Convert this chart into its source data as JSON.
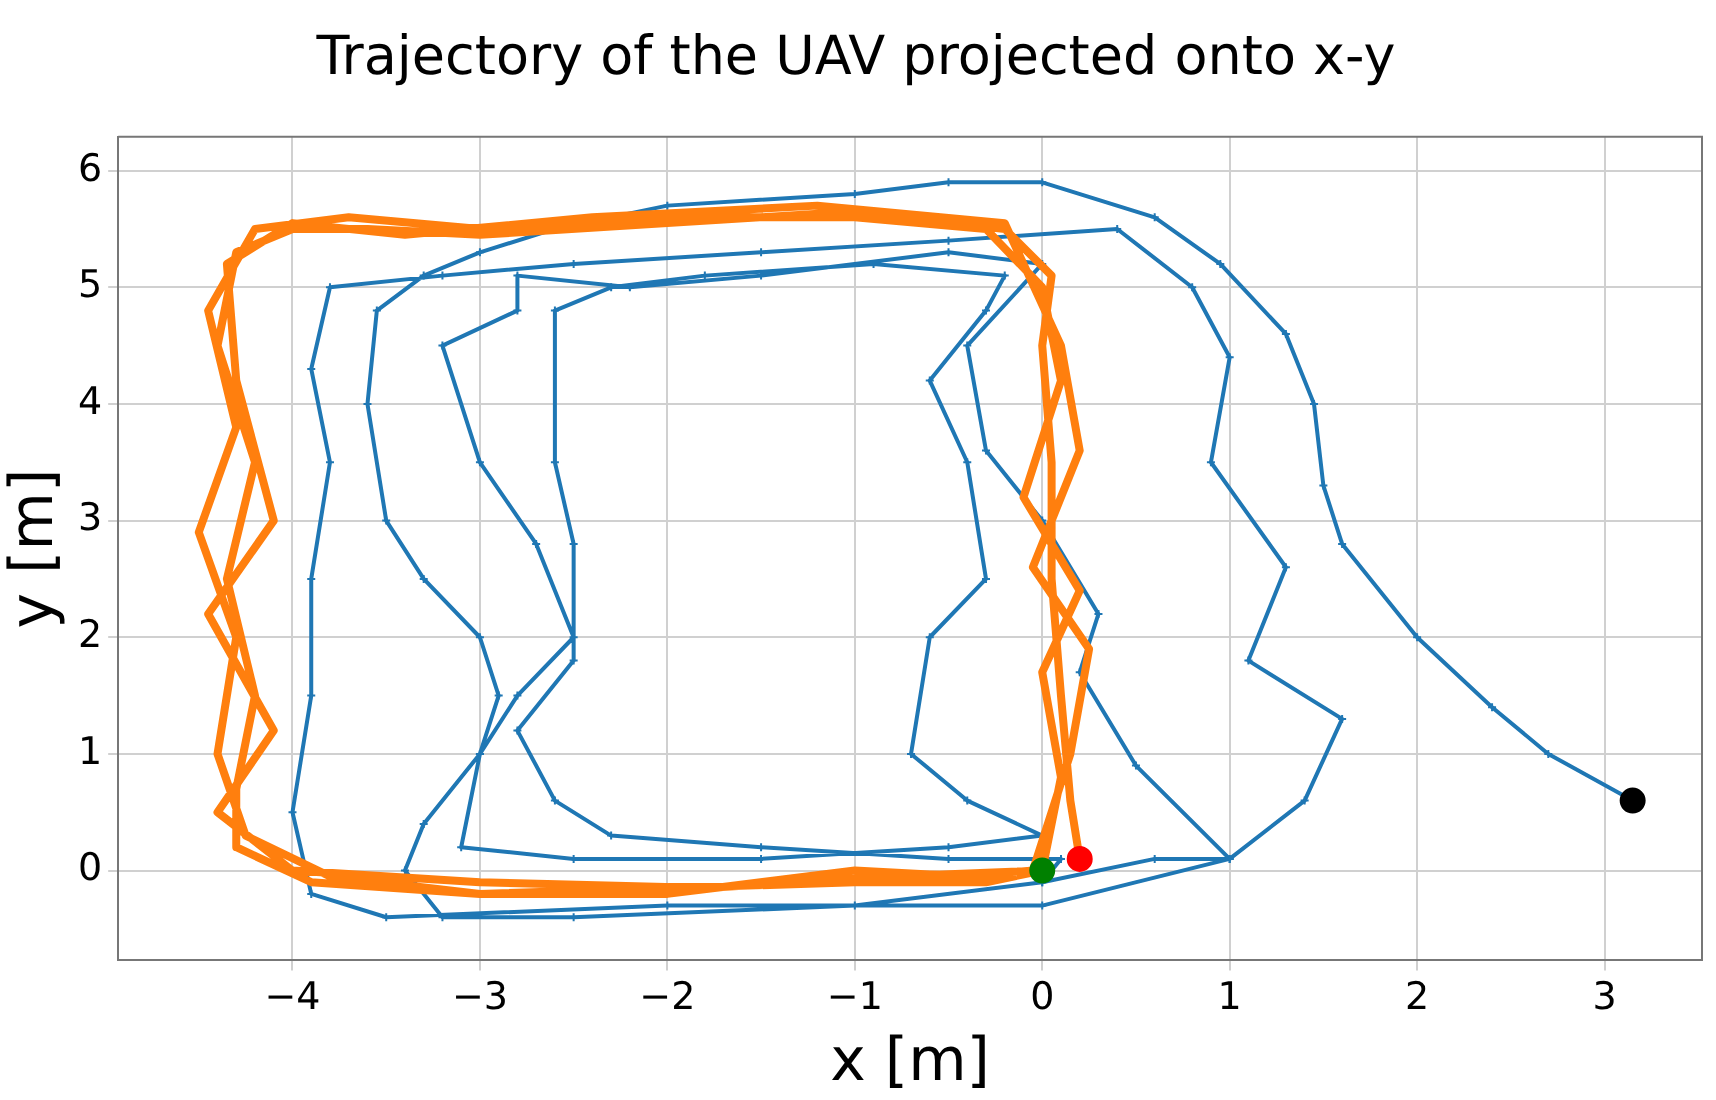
{
  "chart_data": {
    "type": "line",
    "title": "Trajectory of the UAV projected onto x-y",
    "xlabel": "x [m]",
    "ylabel": "y [m]",
    "xlim": [
      -4.93,
      3.52
    ],
    "ylim": [
      -0.77,
      6.29
    ],
    "xticks": [
      {
        "value": -4,
        "label": "−4"
      },
      {
        "value": -3,
        "label": "−3"
      },
      {
        "value": -2,
        "label": "−2"
      },
      {
        "value": -1,
        "label": "−1"
      },
      0,
      1,
      2,
      3
    ],
    "yticks": [
      0,
      1,
      2,
      3,
      4,
      5,
      6
    ],
    "grid": true,
    "legend": false,
    "series": [
      {
        "type": "line",
        "color": "#1f77b4",
        "marker": "cross",
        "x": [
          3.15,
          2.7,
          2.4,
          2.0,
          1.6,
          1.5,
          1.45,
          1.3,
          0.95,
          0.6,
          0.0,
          -0.5,
          -1.0,
          -2.0,
          -2.6,
          -3.0,
          -3.3,
          -3.55,
          -3.6,
          -3.5,
          -3.3,
          -3.0,
          -2.9,
          -3.0,
          -3.3,
          -3.4,
          -3.2,
          -2.5,
          -1.0,
          0.0,
          0.6,
          1.0,
          1.4,
          1.6,
          1.1,
          1.3,
          0.9,
          1.0,
          0.8,
          0.4,
          -0.5,
          -1.5,
          -2.5,
          -3.2,
          -3.8,
          -3.9,
          -3.8,
          -3.9,
          -3.9,
          -4.0,
          -3.9,
          -3.5,
          -2.0,
          0.0,
          1.0,
          0.5,
          0.2,
          0.3,
          0.0,
          -0.3,
          -0.4,
          0.0,
          -0.5,
          -1.5,
          -2.2,
          -2.8,
          -2.8,
          -3.2,
          -3.0,
          -2.7,
          -2.5,
          -2.8,
          -3.0,
          -3.1,
          -2.5,
          -1.5,
          -0.5,
          0.0,
          -0.4,
          -0.7,
          -0.6,
          -0.3,
          -0.4,
          -0.6,
          -0.3,
          -0.2,
          -0.9,
          -1.8,
          -2.3,
          -2.6,
          -2.6,
          -2.5,
          -2.5,
          -2.8,
          -2.6,
          -2.3,
          -1.5,
          -0.5,
          0.1,
          0.0
        ],
        "values": [
          0.6,
          1.0,
          1.4,
          2.0,
          2.8,
          3.3,
          4.0,
          4.6,
          5.2,
          5.6,
          5.9,
          5.9,
          5.8,
          5.7,
          5.5,
          5.3,
          5.1,
          4.8,
          4.0,
          3.0,
          2.5,
          2.0,
          1.5,
          1.0,
          0.4,
          0.0,
          -0.4,
          -0.4,
          -0.3,
          -0.1,
          0.1,
          0.1,
          0.6,
          1.3,
          1.8,
          2.6,
          3.5,
          4.4,
          5.0,
          5.5,
          5.4,
          5.3,
          5.2,
          5.1,
          5.0,
          4.3,
          3.5,
          2.5,
          1.5,
          0.5,
          -0.2,
          -0.4,
          -0.3,
          -0.3,
          0.1,
          0.9,
          1.7,
          2.2,
          3.0,
          3.6,
          4.5,
          5.2,
          5.3,
          5.1,
          5.0,
          5.1,
          4.8,
          4.5,
          3.5,
          2.8,
          2.0,
          1.5,
          1.0,
          0.2,
          0.1,
          0.1,
          0.2,
          0.3,
          0.6,
          1.0,
          2.0,
          2.5,
          3.5,
          4.2,
          4.8,
          5.1,
          5.2,
          5.1,
          5.0,
          4.8,
          3.5,
          2.8,
          1.8,
          1.2,
          0.6,
          0.3,
          0.2,
          0.1,
          0.1,
          -0.1
        ]
      },
      {
        "type": "line",
        "color": "#ff7f0e",
        "x": [
          0.2,
          0.15,
          0.1,
          0.05,
          0.05,
          0.0,
          0.05,
          -0.2,
          -1.0,
          -2.0,
          -3.0,
          -3.6,
          -4.0,
          -4.3,
          -4.4,
          -4.2,
          -4.35,
          -4.2,
          -4.3,
          -4.3,
          -3.9,
          -3.0,
          -2.0,
          -1.0,
          -0.3,
          0.0,
          0.1,
          0.0,
          0.2,
          -0.1,
          0.1,
          0.0,
          -0.3,
          -1.0,
          -2.0,
          -3.0,
          -3.7,
          -4.2,
          -4.45,
          -4.3,
          -4.5,
          -4.3,
          -4.4,
          -4.25,
          -3.8,
          -3.0,
          -2.0,
          -1.0,
          -0.4,
          -0.05,
          0.15,
          0.25,
          -0.05,
          0.2,
          0.1,
          -0.1,
          -0.2,
          -1.2,
          -2.4,
          -3.4,
          -4.0,
          -4.35,
          -4.3,
          -4.1,
          -4.45,
          -4.1,
          -4.4,
          -4.0,
          -3.0,
          -1.8,
          -0.8,
          0.0
        ],
        "values": [
          0.1,
          0.6,
          1.5,
          2.5,
          3.5,
          4.5,
          5.1,
          5.5,
          5.65,
          5.55,
          5.45,
          5.5,
          5.5,
          5.3,
          4.5,
          3.5,
          2.5,
          1.5,
          0.7,
          0.2,
          -0.1,
          -0.2,
          -0.15,
          -0.1,
          -0.1,
          0.0,
          0.8,
          1.7,
          2.4,
          3.2,
          4.2,
          5.0,
          5.5,
          5.6,
          5.6,
          5.5,
          5.6,
          5.5,
          4.8,
          3.8,
          2.9,
          2.0,
          1.0,
          0.3,
          -0.05,
          -0.2,
          -0.2,
          0.0,
          -0.05,
          0.0,
          1.0,
          1.9,
          2.6,
          3.6,
          4.5,
          5.2,
          5.55,
          5.7,
          5.6,
          5.45,
          5.55,
          5.2,
          4.2,
          3.0,
          2.2,
          1.2,
          0.5,
          0.0,
          -0.1,
          -0.15,
          -0.05,
          0.0
        ]
      },
      {
        "type": "scatter",
        "color": "#008000",
        "x": [
          0.0
        ],
        "values": [
          0.0
        ]
      },
      {
        "type": "scatter",
        "color": "#ff0000",
        "x": [
          0.2
        ],
        "values": [
          0.1
        ]
      },
      {
        "type": "scatter",
        "color": "#000000",
        "x": [
          3.15
        ],
        "values": [
          0.6
        ]
      }
    ]
  }
}
